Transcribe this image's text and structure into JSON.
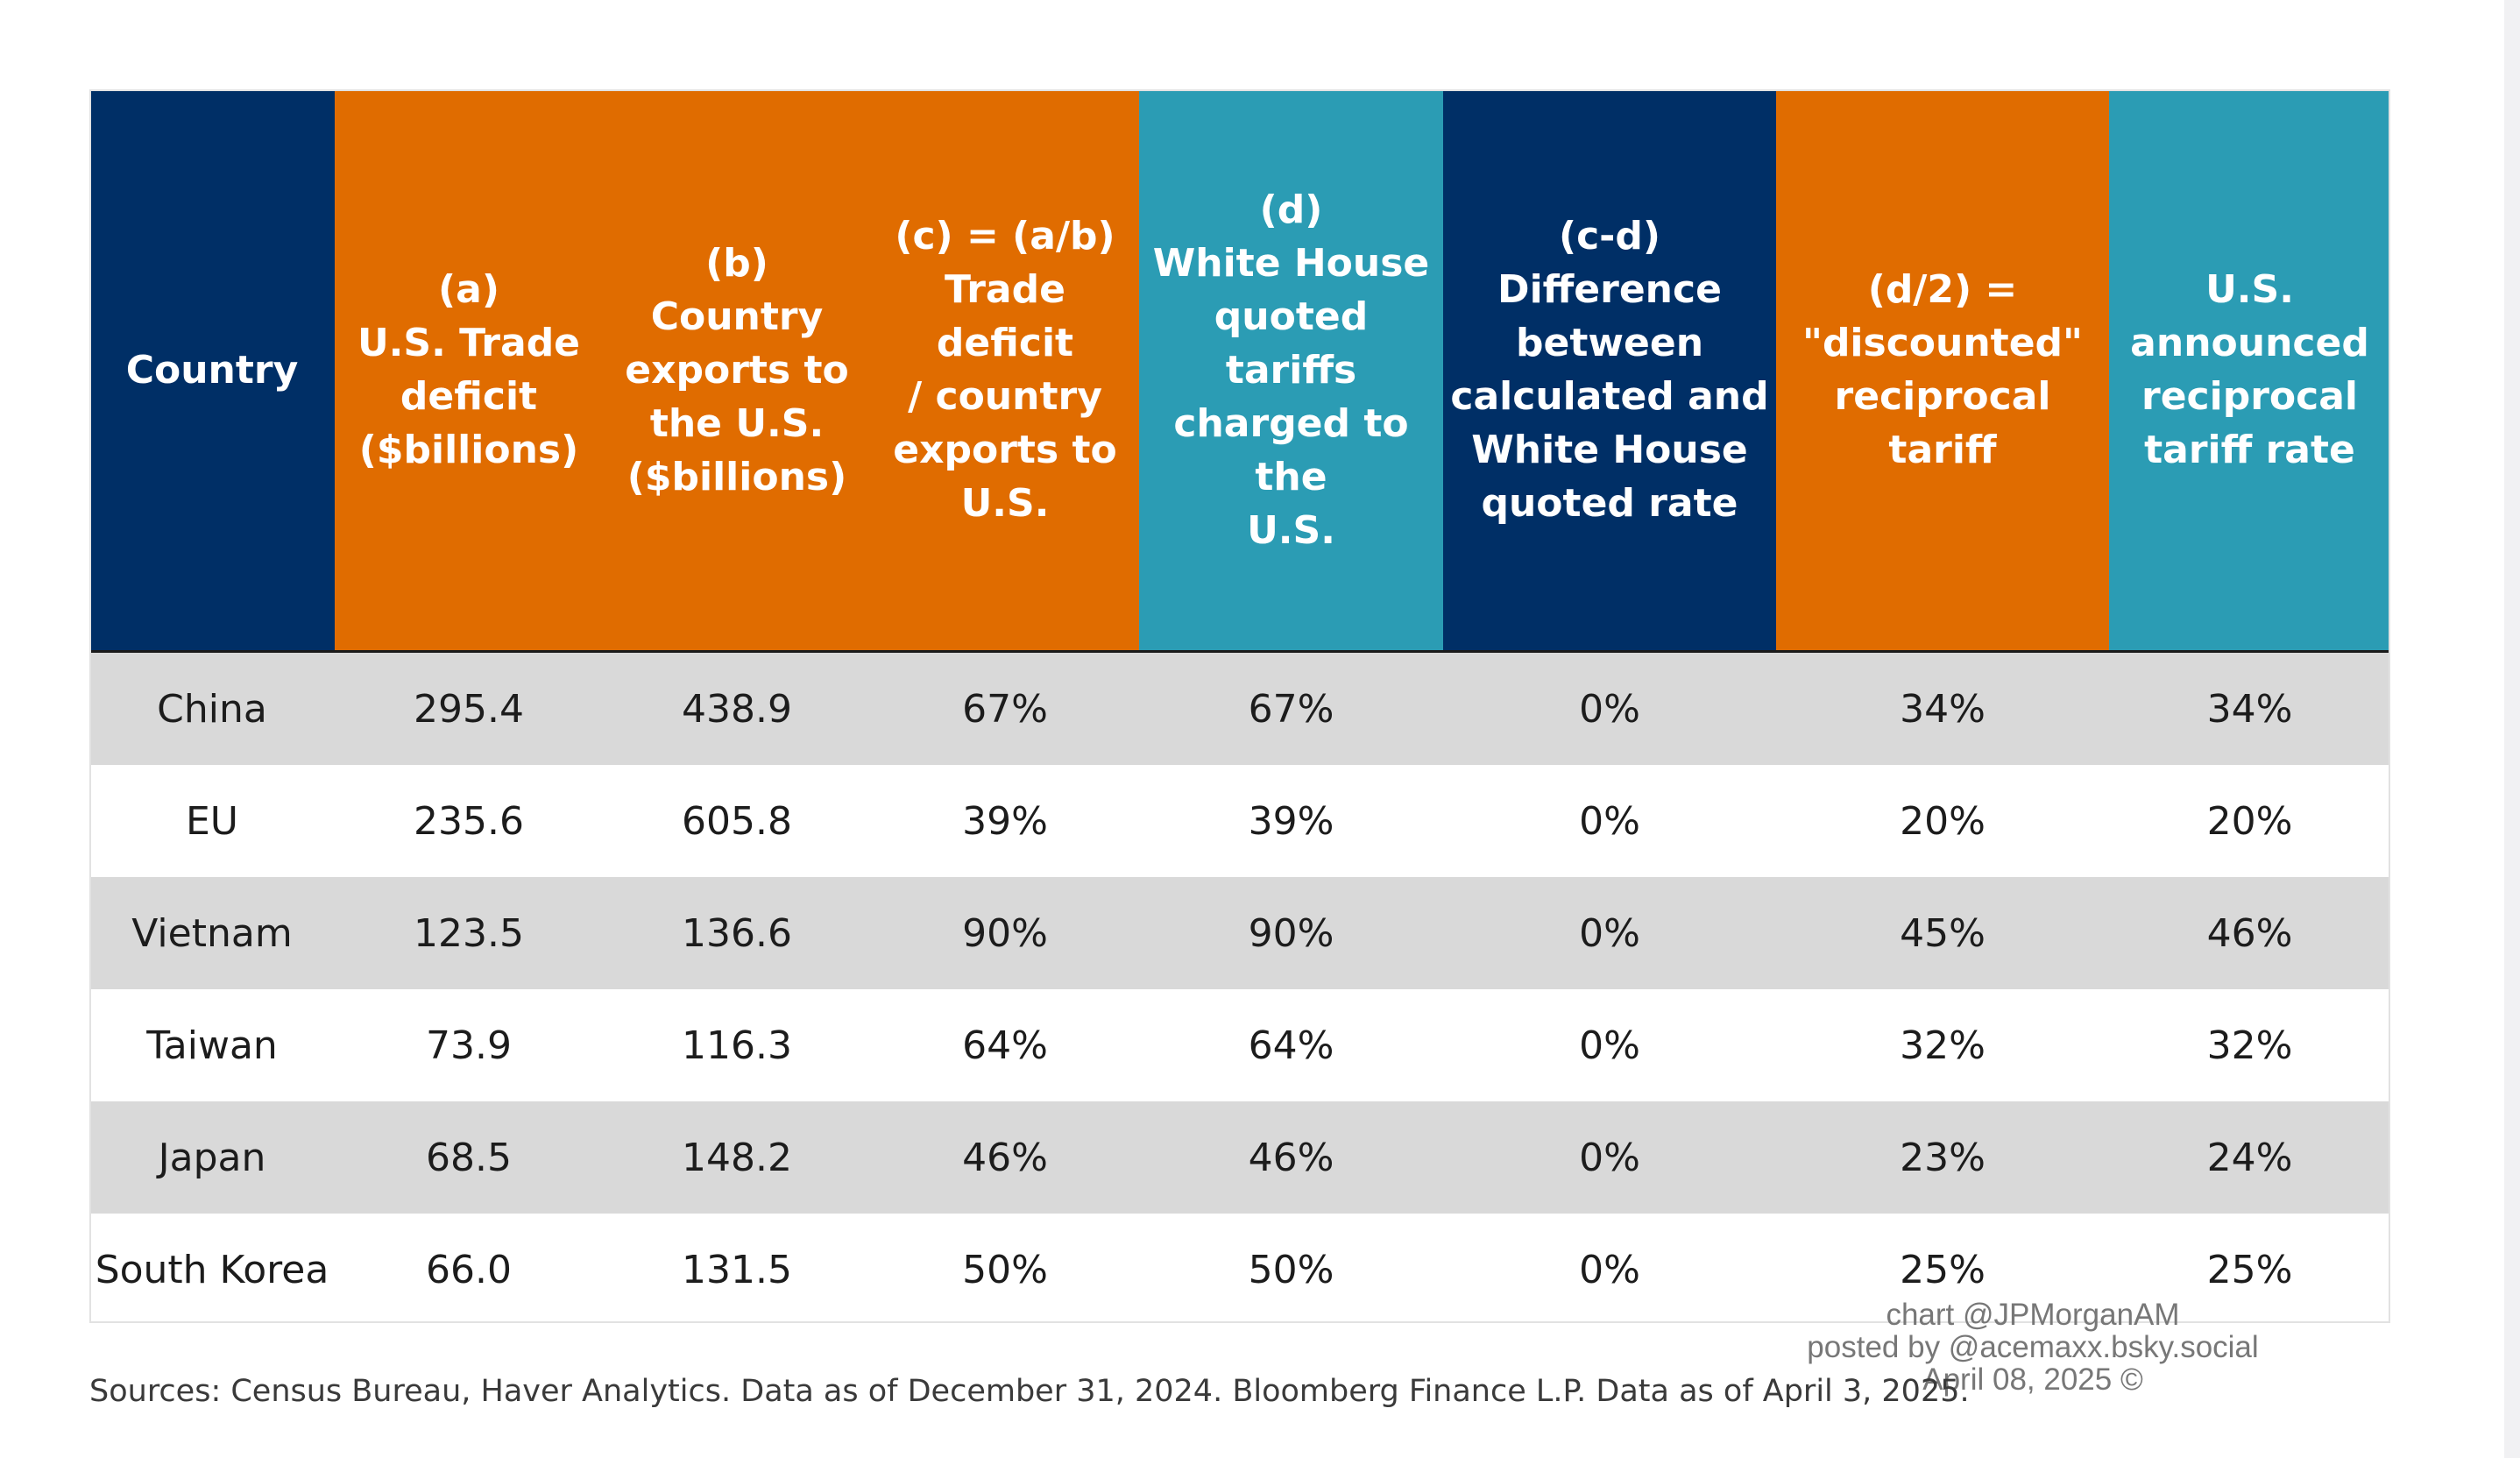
{
  "colors": {
    "navy": "#002f66",
    "orange": "#e06c00",
    "teal": "#2b9cb4",
    "row_shade": "#d9d9d9",
    "row_plain": "#ffffff"
  },
  "columns": [
    {
      "lines": [
        "Country"
      ],
      "color": "navy"
    },
    {
      "lines": [
        "(a)",
        "U.S. Trade",
        "deficit",
        "($billions)"
      ],
      "color": "orange"
    },
    {
      "lines": [
        "(b)",
        "Country",
        "exports to",
        "the U.S.",
        "($billions)"
      ],
      "color": "orange"
    },
    {
      "lines": [
        "(c) = (a/b)",
        "Trade deficit",
        "/ country",
        "exports to",
        "U.S."
      ],
      "color": "orange"
    },
    {
      "lines": [
        "(d)",
        "White House",
        "quoted tariffs",
        "charged to the",
        "U.S."
      ],
      "color": "teal"
    },
    {
      "lines": [
        "(c-d)",
        "Difference",
        "between",
        "calculated and",
        "White House",
        "quoted rate"
      ],
      "color": "navy"
    },
    {
      "lines": [
        "(d/2) =",
        "\"discounted\"",
        "reciprocal tariff"
      ],
      "color": "orange"
    },
    {
      "lines": [
        "U.S.",
        "announced",
        "reciprocal",
        "tariff rate"
      ],
      "color": "teal"
    }
  ],
  "chart_data": {
    "type": "table",
    "columns": [
      "Country",
      "(a) U.S. Trade deficit ($billions)",
      "(b) Country exports to the U.S. ($billions)",
      "(c) = (a/b) Trade deficit / country exports to U.S.",
      "(d) White House quoted tariffs charged to the U.S.",
      "(c-d) Difference between calculated and White House quoted rate",
      "(d/2) = \"discounted\" reciprocal tariff",
      "U.S. announced reciprocal tariff rate"
    ],
    "rows": [
      [
        "China",
        "295.4",
        "438.9",
        "67%",
        "67%",
        "0%",
        "34%",
        "34%"
      ],
      [
        "EU",
        "235.6",
        "605.8",
        "39%",
        "39%",
        "0%",
        "20%",
        "20%"
      ],
      [
        "Vietnam",
        "123.5",
        "136.6",
        "90%",
        "90%",
        "0%",
        "45%",
        "46%"
      ],
      [
        "Taiwan",
        "73.9",
        "116.3",
        "64%",
        "64%",
        "0%",
        "32%",
        "32%"
      ],
      [
        "Japan",
        "68.5",
        "148.2",
        "46%",
        "46%",
        "0%",
        "23%",
        "24%"
      ],
      [
        "South Korea",
        "66.0",
        "131.5",
        "50%",
        "50%",
        "0%",
        "25%",
        "25%"
      ]
    ]
  },
  "credit": {
    "line1": "chart @JPMorganAM",
    "line2": "posted by @acemaxx.bsky.social",
    "line3": "April 08, 2025 ©"
  },
  "sources": "Sources: Census Bureau, Haver Analytics. Data as of December 31, 2024. Bloomberg Finance L.P. Data as of April 3, 2025."
}
